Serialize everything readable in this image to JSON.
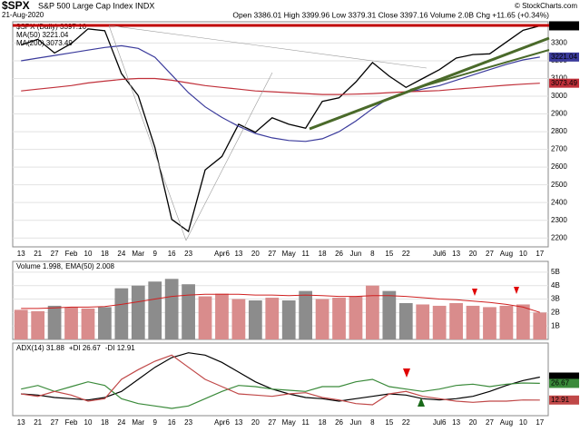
{
  "header": {
    "symbol": "$SPX",
    "name": "S&P 500 Large Cap Index INDX",
    "date": "21-Aug-2020",
    "info": "Open 3386.01 High 3399.96 Low 3379.31 Close 3397.16 Volume 2.0B Chg +11.65 (+0.34%)",
    "credit": "© StockCharts.com"
  },
  "chart_data": [
    {
      "type": "line",
      "categories": [
        "13",
        "21",
        "27",
        "Feb",
        "10",
        "18",
        "24",
        "Mar",
        "9",
        "16",
        "23",
        null,
        "Apr6",
        "13",
        "20",
        "27",
        "May",
        "11",
        "18",
        "26",
        "Jun",
        "8",
        "15",
        "22",
        null,
        "Jul6",
        "13",
        "20",
        "27",
        "Aug",
        "10",
        "17"
      ],
      "series": [
        {
          "name": "$SPX (Daily) 3397.16",
          "tag": "3397.16",
          "color": "#000000",
          "values": [
            3289,
            3321,
            3244,
            3297,
            3380,
            3370,
            3128,
            3003,
            2711,
            2305,
            2237,
            2584,
            2660,
            2842,
            2797,
            2878,
            2842,
            2820,
            2971,
            2991,
            3080,
            3190,
            3113,
            3050,
            3100,
            3150,
            3215,
            3235,
            3239,
            3306,
            3372,
            3397.16
          ]
        },
        {
          "name": "MA(50) 3221.04",
          "tag": "3221.04",
          "color": "#3b3b9c",
          "values": [
            3200,
            3215,
            3230,
            3245,
            3260,
            3275,
            3285,
            3270,
            3220,
            3120,
            3020,
            2940,
            2880,
            2830,
            2790,
            2765,
            2750,
            2745,
            2760,
            2800,
            2860,
            2930,
            2990,
            3020,
            3040,
            3060,
            3090,
            3120,
            3150,
            3180,
            3205,
            3221.04
          ]
        },
        {
          "name": "MA(200) 3073.49",
          "tag": "3073.49",
          "color": "#c0303a",
          "values": [
            3030,
            3040,
            3050,
            3060,
            3075,
            3085,
            3095,
            3100,
            3100,
            3090,
            3075,
            3060,
            3050,
            3040,
            3030,
            3025,
            3020,
            3015,
            3010,
            3010,
            3012,
            3015,
            3020,
            3025,
            3028,
            3032,
            3040,
            3047,
            3055,
            3062,
            3068,
            3073.49
          ]
        }
      ],
      "ylim": [
        2150,
        3420
      ],
      "yticks": [
        2200,
        2300,
        2400,
        2500,
        2600,
        2700,
        2800,
        2900,
        3000,
        3100,
        3200,
        3300
      ],
      "grid": true
    },
    {
      "type": "bar",
      "series": [
        {
          "name": "Volume 1.998,",
          "up_color": "#d98c8c",
          "down_color": "#8c8c8c",
          "values": [
            2.2,
            2.1,
            2.5,
            2.4,
            2.3,
            2.4,
            3.8,
            4.0,
            4.3,
            4.5,
            4.1,
            3.2,
            3.4,
            3.0,
            2.9,
            3.1,
            2.9,
            3.6,
            3.0,
            3.1,
            3.2,
            4.0,
            3.6,
            2.7,
            2.6,
            2.5,
            2.7,
            2.5,
            2.4,
            2.5,
            2.6,
            1.998
          ]
        },
        {
          "name": "EMA(50) 2.008",
          "color": "#d02020",
          "values": [
            2.3,
            2.3,
            2.35,
            2.4,
            2.4,
            2.45,
            2.6,
            2.8,
            3.0,
            3.2,
            3.3,
            3.35,
            3.35,
            3.35,
            3.3,
            3.3,
            3.25,
            3.3,
            3.25,
            3.2,
            3.2,
            3.25,
            3.25,
            3.2,
            3.1,
            3.0,
            2.95,
            2.85,
            2.75,
            2.6,
            2.4,
            2.008
          ]
        }
      ],
      "ylim": [
        0,
        5.8
      ],
      "yticks": [
        {
          "value": 1,
          "label": "1B"
        },
        {
          "value": 2,
          "label": "2B"
        },
        {
          "value": 3,
          "label": "3B"
        },
        {
          "value": 4,
          "label": "4B"
        },
        {
          "value": 5,
          "label": "5B"
        }
      ],
      "grid": true
    },
    {
      "type": "line",
      "categories": [
        "13",
        "21",
        "27",
        "Feb",
        "10",
        "18",
        "24",
        "Mar",
        "9",
        "16",
        "23",
        null,
        "Apr6",
        "13",
        "20",
        "27",
        "May",
        "11",
        "18",
        "26",
        "Jun",
        "8",
        "15",
        "22",
        null,
        "Jul6",
        "13",
        "20",
        "27",
        "Aug",
        "10",
        "17"
      ],
      "series": [
        {
          "name": "ADX(14) 31.88",
          "tag": "31.88",
          "color": "#000000",
          "values": [
            18,
            17,
            15,
            14,
            13,
            15,
            20,
            30,
            40,
            48,
            52,
            50,
            44,
            36,
            28,
            22,
            18,
            15,
            14,
            12,
            14,
            16,
            18,
            17,
            14,
            13,
            14,
            16,
            20,
            25,
            29,
            31.88
          ]
        },
        {
          "name": "+DI 26.67",
          "tag": "26.67",
          "color": "#3a8a3a",
          "values": [
            22,
            25,
            20,
            24,
            28,
            25,
            14,
            10,
            8,
            6,
            8,
            14,
            20,
            25,
            24,
            22,
            21,
            20,
            24,
            24,
            28,
            30,
            24,
            22,
            20,
            22,
            25,
            26,
            24,
            26,
            27,
            26.67
          ]
        },
        {
          "name": "-DI 12.91",
          "tag": "12.91",
          "color": "#c04848",
          "values": [
            18,
            16,
            20,
            17,
            12,
            14,
            30,
            38,
            45,
            50,
            40,
            30,
            24,
            18,
            17,
            16,
            18,
            19,
            15,
            13,
            10,
            9,
            18,
            20,
            16,
            14,
            12,
            11,
            12,
            12,
            13,
            12.91
          ]
        }
      ],
      "ylim": [
        0,
        60
      ]
    }
  ]
}
